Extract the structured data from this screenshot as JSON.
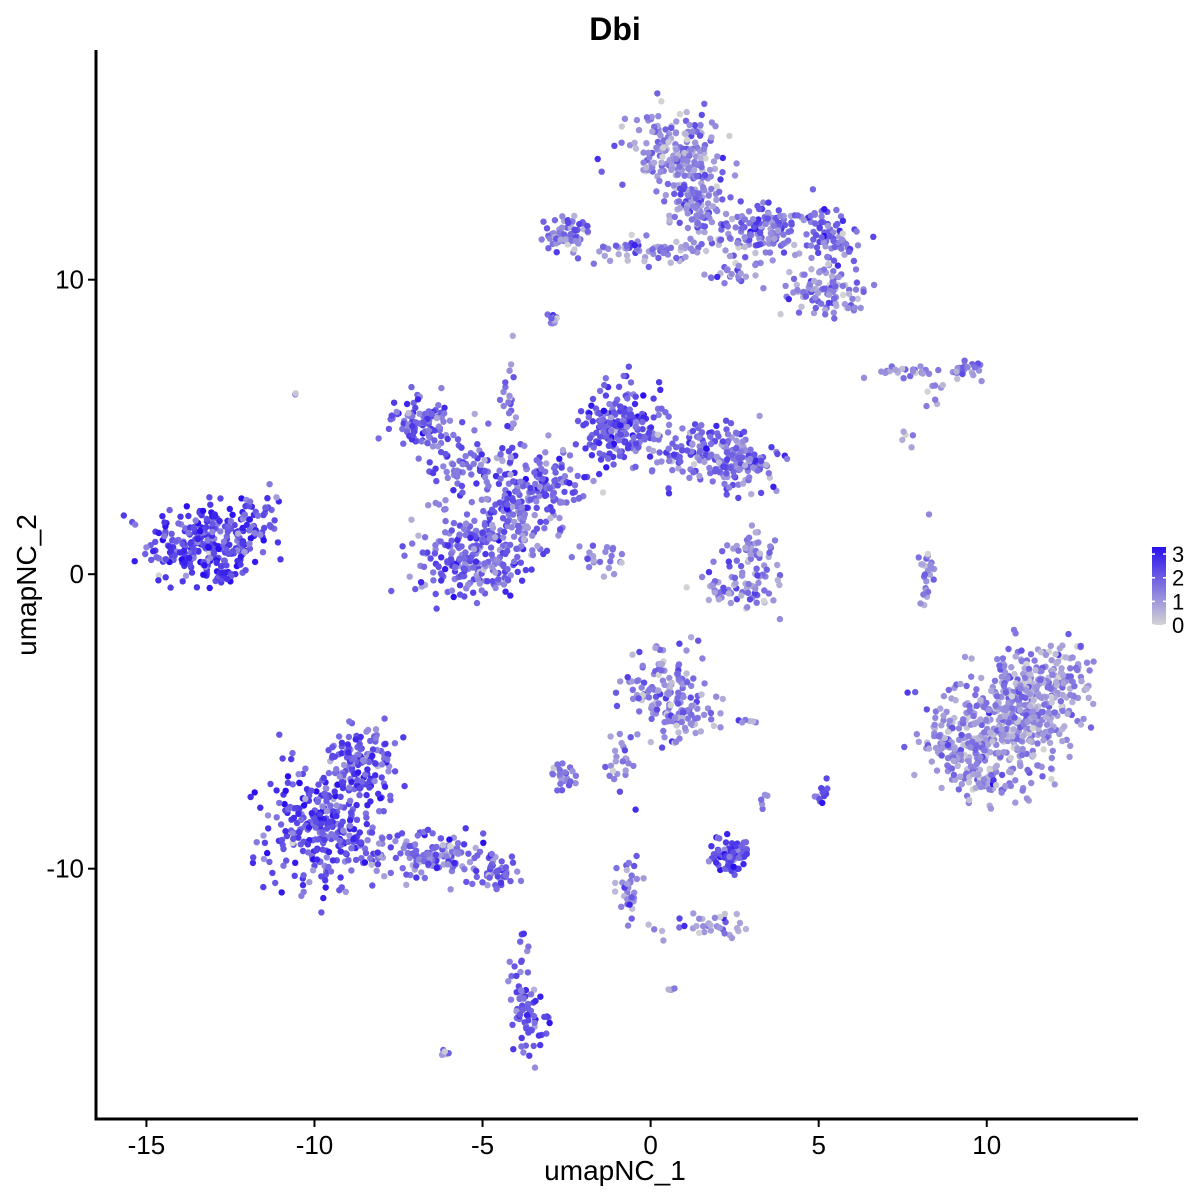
{
  "chart_data": {
    "type": "scatter",
    "title": "Dbi",
    "xlabel": "umapNC_1",
    "ylabel": "umapNC_2",
    "xlim": [
      -16.5,
      14.5
    ],
    "ylim": [
      -18.5,
      17.8
    ],
    "xticks": [
      -15,
      -10,
      -5,
      0,
      5,
      10
    ],
    "xtick_labels": [
      "-15",
      "-10",
      "-5",
      "0",
      "5",
      "10"
    ],
    "yticks": [
      -10,
      0,
      10
    ],
    "ytick_labels": [
      "-10",
      "0",
      "10"
    ],
    "grid": false,
    "color_scale": {
      "name": "expression",
      "low_color": "#d3d3d3",
      "high_color": "#2a10ee",
      "min": 0,
      "max": 3.3,
      "ticks": [
        0,
        1,
        2,
        3
      ],
      "tick_labels": [
        "0",
        "1",
        "2",
        "3"
      ],
      "legend_position": "right"
    },
    "clusters": [
      {
        "x": -13.3,
        "y": 1.0,
        "sx": 1.1,
        "sy": 0.9,
        "n": 260,
        "expr": 2.4
      },
      {
        "x": -11.8,
        "y": 1.8,
        "sx": 0.45,
        "sy": 0.6,
        "n": 50,
        "expr": 2.2
      },
      {
        "x": -12.6,
        "y": 0.0,
        "sx": 0.3,
        "sy": 0.2,
        "n": 15,
        "expr": 2.6
      },
      {
        "x": -9.8,
        "y": -8.6,
        "sx": 1.1,
        "sy": 1.4,
        "n": 300,
        "expr": 2.2
      },
      {
        "x": -8.6,
        "y": -6.4,
        "sx": 0.8,
        "sy": 0.9,
        "n": 140,
        "expr": 2.1
      },
      {
        "x": -6.6,
        "y": -9.5,
        "sx": 1.1,
        "sy": 0.6,
        "n": 130,
        "expr": 1.8
      },
      {
        "x": -4.6,
        "y": -10.1,
        "sx": 0.6,
        "sy": 0.4,
        "n": 50,
        "expr": 1.7
      },
      {
        "x": -3.9,
        "y": -13.7,
        "sx": 0.22,
        "sy": 1.1,
        "n": 30,
        "expr": 2.0
      },
      {
        "x": -3.6,
        "y": -15.2,
        "sx": 0.3,
        "sy": 0.7,
        "n": 45,
        "expr": 2.3
      },
      {
        "x": -6.9,
        "y": 5.2,
        "sx": 0.6,
        "sy": 0.6,
        "n": 90,
        "expr": 1.9
      },
      {
        "x": -5.3,
        "y": 3.5,
        "sx": 1.0,
        "sy": 0.9,
        "n": 100,
        "expr": 1.8
      },
      {
        "x": -5.3,
        "y": 0.6,
        "sx": 1.2,
        "sy": 0.9,
        "n": 230,
        "expr": 1.8
      },
      {
        "x": -4.0,
        "y": 2.0,
        "sx": 0.7,
        "sy": 0.9,
        "n": 90,
        "expr": 1.8
      },
      {
        "x": -3.0,
        "y": 3.0,
        "sx": 0.9,
        "sy": 0.9,
        "n": 110,
        "expr": 1.8
      },
      {
        "x": -0.9,
        "y": 5.0,
        "sx": 0.8,
        "sy": 0.9,
        "n": 200,
        "expr": 2.1
      },
      {
        "x": 1.6,
        "y": 4.1,
        "sx": 1.2,
        "sy": 0.6,
        "n": 160,
        "expr": 1.7
      },
      {
        "x": 2.8,
        "y": 3.7,
        "sx": 0.7,
        "sy": 0.5,
        "n": 70,
        "expr": 1.6
      },
      {
        "x": -4.2,
        "y": 5.8,
        "sx": 0.15,
        "sy": 1.2,
        "n": 25,
        "expr": 1.4
      },
      {
        "x": -1.6,
        "y": 0.6,
        "sx": 0.7,
        "sy": 0.35,
        "n": 25,
        "expr": 1.2
      },
      {
        "x": 0.8,
        "y": 14.3,
        "sx": 0.9,
        "sy": 0.9,
        "n": 200,
        "expr": 1.2
      },
      {
        "x": 1.5,
        "y": 12.5,
        "sx": 0.6,
        "sy": 0.9,
        "n": 120,
        "expr": 1.3
      },
      {
        "x": 3.6,
        "y": 11.7,
        "sx": 1.1,
        "sy": 0.6,
        "n": 140,
        "expr": 1.6
      },
      {
        "x": 5.4,
        "y": 11.3,
        "sx": 0.5,
        "sy": 0.6,
        "n": 60,
        "expr": 1.6
      },
      {
        "x": 5.2,
        "y": 9.6,
        "sx": 0.8,
        "sy": 0.6,
        "n": 100,
        "expr": 1.3
      },
      {
        "x": -2.5,
        "y": 11.6,
        "sx": 0.5,
        "sy": 0.4,
        "n": 60,
        "expr": 1.5
      },
      {
        "x": -0.4,
        "y": 11.0,
        "sx": 1.2,
        "sy": 0.3,
        "n": 60,
        "expr": 1.4
      },
      {
        "x": 2.5,
        "y": 10.2,
        "sx": 0.6,
        "sy": 0.3,
        "n": 25,
        "expr": 1.5
      },
      {
        "x": -2.9,
        "y": 8.7,
        "sx": 0.15,
        "sy": 0.15,
        "n": 10,
        "expr": 1.4
      },
      {
        "x": 7.6,
        "y": 6.9,
        "sx": 0.6,
        "sy": 0.15,
        "n": 25,
        "expr": 1.4
      },
      {
        "x": 9.4,
        "y": 7.0,
        "sx": 0.4,
        "sy": 0.25,
        "n": 25,
        "expr": 1.4
      },
      {
        "x": 8.4,
        "y": 6.0,
        "sx": 0.15,
        "sy": 0.3,
        "n": 8,
        "expr": 1.0
      },
      {
        "x": 2.7,
        "y": -0.5,
        "sx": 0.8,
        "sy": 0.5,
        "n": 60,
        "expr": 1.3
      },
      {
        "x": 2.9,
        "y": 0.7,
        "sx": 0.5,
        "sy": 0.6,
        "n": 45,
        "expr": 1.4
      },
      {
        "x": 8.2,
        "y": -0.2,
        "sx": 0.15,
        "sy": 0.9,
        "n": 25,
        "expr": 1.2
      },
      {
        "x": 0.4,
        "y": -4.0,
        "sx": 0.8,
        "sy": 0.9,
        "n": 120,
        "expr": 1.5
      },
      {
        "x": 1.1,
        "y": -4.8,
        "sx": 0.6,
        "sy": 0.6,
        "n": 50,
        "expr": 1.3
      },
      {
        "x": -0.9,
        "y": -6.3,
        "sx": 0.4,
        "sy": 0.7,
        "n": 25,
        "expr": 1.5
      },
      {
        "x": -2.6,
        "y": -6.8,
        "sx": 0.35,
        "sy": 0.3,
        "n": 25,
        "expr": 1.4
      },
      {
        "x": 2.3,
        "y": -9.5,
        "sx": 0.5,
        "sy": 0.4,
        "n": 70,
        "expr": 2.3
      },
      {
        "x": 5.1,
        "y": -7.4,
        "sx": 0.15,
        "sy": 0.25,
        "n": 12,
        "expr": 2.2
      },
      {
        "x": 3.4,
        "y": -7.6,
        "sx": 0.1,
        "sy": 0.2,
        "n": 5,
        "expr": 1.2
      },
      {
        "x": -0.6,
        "y": -10.8,
        "sx": 0.25,
        "sy": 0.8,
        "n": 30,
        "expr": 1.5
      },
      {
        "x": 1.6,
        "y": -12.0,
        "sx": 0.9,
        "sy": 0.35,
        "n": 35,
        "expr": 1.2
      },
      {
        "x": 10.7,
        "y": -4.9,
        "sx": 1.1,
        "sy": 1.3,
        "n": 350,
        "expr": 1.1
      },
      {
        "x": 11.8,
        "y": -3.8,
        "sx": 0.9,
        "sy": 1.0,
        "n": 160,
        "expr": 1.1
      },
      {
        "x": 9.0,
        "y": -5.6,
        "sx": 0.7,
        "sy": 0.9,
        "n": 100,
        "expr": 1.3
      },
      {
        "x": 10.0,
        "y": -7.0,
        "sx": 0.8,
        "sy": 0.4,
        "n": 70,
        "expr": 1.1
      },
      {
        "x": 0.6,
        "y": -14.1,
        "sx": 0.08,
        "sy": 0.08,
        "n": 4,
        "expr": 1.3
      },
      {
        "x": -6.1,
        "y": -16.3,
        "sx": 0.12,
        "sy": 0.06,
        "n": 5,
        "expr": 1.6
      },
      {
        "x": -10.6,
        "y": 6.1,
        "sx": 0.05,
        "sy": 0.05,
        "n": 2,
        "expr": 1.3
      },
      {
        "x": 2.8,
        "y": -5.0,
        "sx": 0.25,
        "sy": 0.08,
        "n": 6,
        "expr": 1.0
      },
      {
        "x": 7.7,
        "y": 4.7,
        "sx": 0.15,
        "sy": 0.2,
        "n": 5,
        "expr": 0.9
      }
    ]
  }
}
